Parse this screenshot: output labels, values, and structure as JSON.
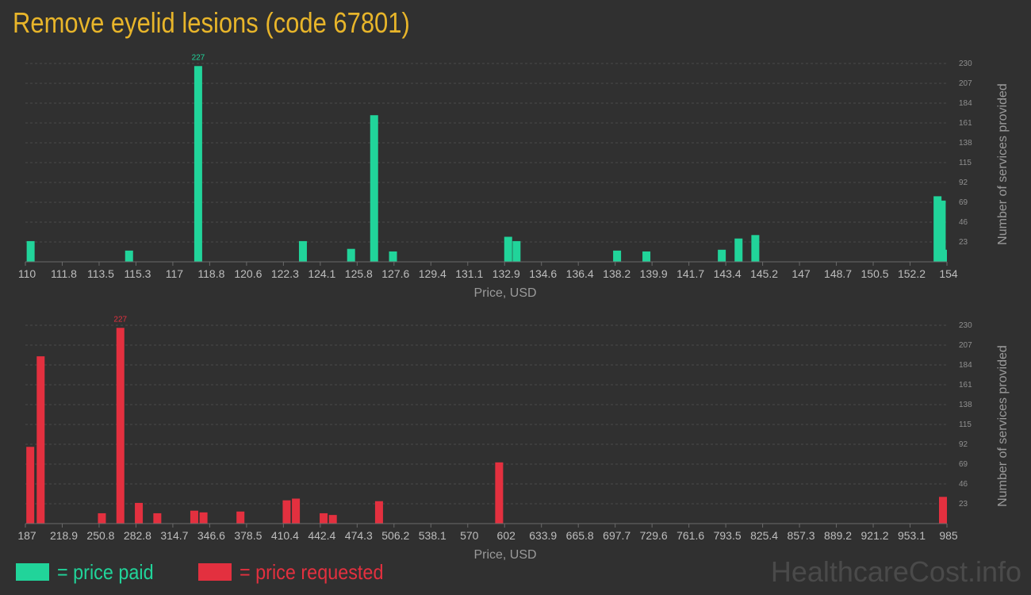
{
  "title": "Remove eyelid lesions (code 67801)",
  "chart_data": [
    {
      "type": "bar",
      "id": "price-paid",
      "xlabel": "Price, USD",
      "ylabel": "Number of services provided",
      "xlim": [
        110,
        154
      ],
      "ylim": [
        0,
        230
      ],
      "xticks": [
        "110",
        "111.8",
        "113.5",
        "115.3",
        "117",
        "118.8",
        "120.6",
        "122.3",
        "124.1",
        "125.8",
        "127.6",
        "129.4",
        "131.1",
        "132.9",
        "134.6",
        "136.4",
        "138.2",
        "139.9",
        "141.7",
        "143.4",
        "145.2",
        "147",
        "148.7",
        "150.5",
        "152.2",
        "154"
      ],
      "yticks": [
        23,
        46,
        69,
        92,
        115,
        138,
        161,
        184,
        207,
        230
      ],
      "color": "#21d49a",
      "x": [
        110.1,
        114.8,
        118.1,
        123.1,
        125.4,
        126.5,
        127.4,
        132.9,
        133.3,
        138.1,
        139.5,
        143.1,
        143.9,
        144.7,
        153.4,
        153.6,
        155.2,
        155.8
      ],
      "values": [
        24,
        13,
        227,
        24,
        15,
        170,
        12,
        29,
        24,
        13,
        12,
        14,
        27,
        31,
        76,
        71,
        11,
        14
      ],
      "data_labels": [
        {
          "x": 118.1,
          "text": "227"
        }
      ]
    },
    {
      "type": "bar",
      "id": "price-requested",
      "xlabel": "Price, USD",
      "ylabel": "Number of services provided",
      "xlim": [
        187,
        985
      ],
      "ylim": [
        0,
        230
      ],
      "xticks": [
        "187",
        "218.9",
        "250.8",
        "282.8",
        "314.7",
        "346.6",
        "378.5",
        "410.4",
        "442.4",
        "474.3",
        "506.2",
        "538.1",
        "570",
        "602",
        "633.9",
        "665.8",
        "697.7",
        "729.6",
        "761.6",
        "793.5",
        "825.4",
        "857.3",
        "889.2",
        "921.2",
        "953.1",
        "985"
      ],
      "yticks": [
        23,
        46,
        69,
        92,
        115,
        138,
        161,
        184,
        207,
        230
      ],
      "color": "#e3303f",
      "x": [
        188.5,
        197.5,
        250.5,
        266.5,
        282.5,
        298.5,
        330.5,
        338.5,
        370.5,
        410.5,
        418.5,
        442.5,
        450.5,
        490.5,
        594.5,
        980.5
      ],
      "values": [
        89,
        194,
        12,
        227,
        24,
        12,
        15,
        13,
        14,
        27,
        29,
        12,
        10,
        26,
        71,
        31
      ],
      "data_labels": [
        {
          "x": 266.5,
          "text": "227"
        }
      ]
    }
  ],
  "legend": {
    "paid_label": "= price paid",
    "requested_label": "= price requested"
  },
  "watermark": "HealthcareCost.info"
}
